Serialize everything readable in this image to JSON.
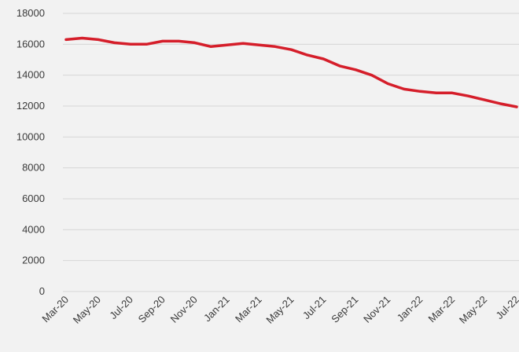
{
  "chart_data": {
    "type": "line",
    "title": "",
    "xlabel": "",
    "ylabel": "",
    "ylim": [
      0,
      18000
    ],
    "y_ticks": [
      "0",
      "2000",
      "4000",
      "6000",
      "8000",
      "10000",
      "12000",
      "14000",
      "16000",
      "18000"
    ],
    "x_ticks": [
      "Mar-20",
      "May-20",
      "Jul-20",
      "Sep-20",
      "Nov-20",
      "Jan-21",
      "Mar-21",
      "May-21",
      "Jul-21",
      "Sep-21",
      "Nov-21",
      "Jan-22",
      "Mar-22",
      "May-22",
      "Jul-22"
    ],
    "grid": true,
    "legend": "none",
    "x": [
      "Mar-20",
      "Apr-20",
      "May-20",
      "Jun-20",
      "Jul-20",
      "Aug-20",
      "Sep-20",
      "Oct-20",
      "Nov-20",
      "Dec-20",
      "Jan-21",
      "Feb-21",
      "Mar-21",
      "Apr-21",
      "May-21",
      "Jun-21",
      "Jul-21",
      "Aug-21",
      "Sep-21",
      "Oct-21",
      "Nov-21",
      "Dec-21",
      "Jan-22",
      "Feb-22",
      "Mar-22",
      "Apr-22",
      "May-22",
      "Jun-22",
      "Jul-22"
    ],
    "series": [
      {
        "color": "#d51e2a",
        "values": [
          16300,
          16400,
          16300,
          16100,
          16000,
          16000,
          16200,
          16200,
          16100,
          15850,
          15950,
          16050,
          15950,
          15850,
          15650,
          15300,
          15050,
          14600,
          14350,
          14000,
          13450,
          13100,
          12950,
          12850,
          12850,
          12650,
          12400,
          12150,
          11950
        ]
      }
    ]
  }
}
